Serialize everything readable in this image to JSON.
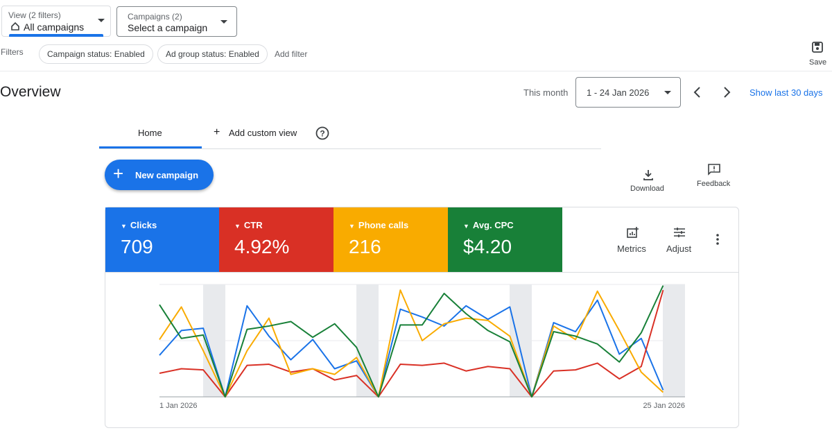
{
  "header": {
    "view_filter_label": "View (2 filters)",
    "view_filter_value": "All campaigns",
    "campaign_filter_label": "Campaigns (2)",
    "campaign_filter_value": "Select a campaign",
    "filters_label": "Filters",
    "filter_chips": [
      "Campaign status: Enabled",
      "Ad group status: Enabled"
    ],
    "add_filter": "Add filter",
    "save": "Save"
  },
  "overview": {
    "title": "Overview",
    "range_label": "This month",
    "date_range": "1 - 24 Jan 2026",
    "show_last": "Show last 30 days",
    "tabs": [
      "Home",
      "Add custom view"
    ],
    "new_campaign": "New campaign",
    "download": "Download",
    "feedback": "Feedback",
    "metrics_button": "Metrics",
    "adjust_button": "Adjust"
  },
  "chart_data": {
    "type": "line",
    "x": [
      0,
      1,
      2,
      3,
      4,
      5,
      6,
      7,
      8,
      9,
      10,
      11,
      12,
      13,
      14,
      15,
      16,
      17,
      18,
      19,
      20,
      21,
      22,
      23
    ],
    "xlim": [
      0,
      24
    ],
    "xticks": [
      {
        "value": 0,
        "label": "1 Jan 2026"
      },
      {
        "value": 24,
        "label": "25 Jan 2026"
      }
    ],
    "ylim": [
      0,
      100
    ],
    "series": [
      {
        "name": "Clicks",
        "color": "#1a73e8",
        "total": "709",
        "values": [
          37,
          59,
          61,
          0,
          81,
          54,
          33,
          51,
          25,
          32,
          0,
          78,
          71,
          63,
          81,
          69,
          80,
          0,
          66,
          58,
          86,
          38,
          52,
          6
        ]
      },
      {
        "name": "CTR",
        "color": "#d93025",
        "total": "4.92%",
        "values": [
          21,
          25,
          24,
          0,
          28,
          29,
          22,
          25,
          15,
          19,
          0,
          29,
          28,
          30,
          23,
          27,
          25,
          0,
          23,
          24,
          30,
          16,
          27,
          95
        ]
      },
      {
        "name": "Phone calls",
        "color": "#f9ab00",
        "total": "216",
        "values": [
          51,
          80,
          41,
          0,
          41,
          70,
          20,
          25,
          20,
          35,
          0,
          95,
          50,
          65,
          70,
          68,
          54,
          0,
          63,
          51,
          94,
          59,
          22,
          4
        ]
      },
      {
        "name": "Avg. CPC",
        "color": "#188038",
        "total": "$4.20",
        "values": [
          82,
          52,
          55,
          0,
          60,
          63,
          67,
          53,
          65,
          44,
          0,
          64,
          64,
          92,
          74,
          59,
          49,
          0,
          58,
          54,
          47,
          31,
          57,
          99
        ]
      }
    ]
  }
}
